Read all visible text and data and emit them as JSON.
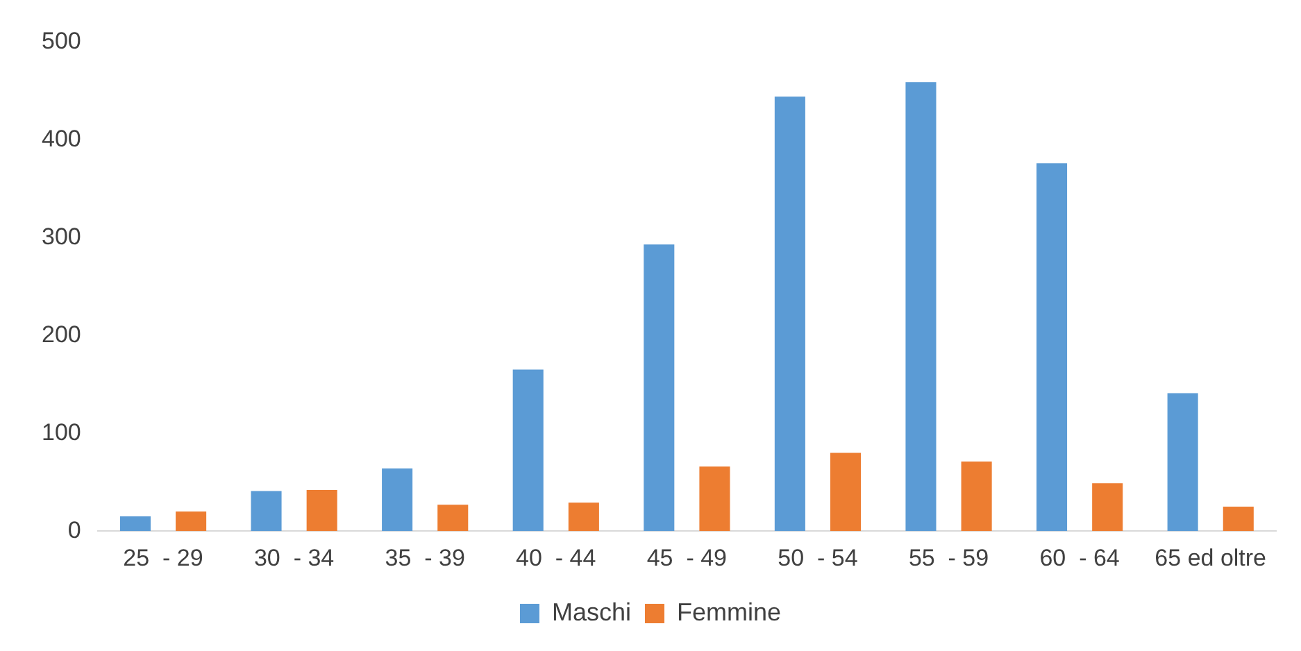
{
  "chart_data": {
    "type": "bar",
    "categories": [
      "25  - 29",
      "30  - 34",
      "35  - 39",
      "40  - 44",
      "45  - 49",
      "50  - 54",
      "55  - 59",
      "60  - 64",
      "65 ed oltre"
    ],
    "series": [
      {
        "name": "Maschi",
        "color": "#5b9bd5",
        "values": [
          15,
          41,
          64,
          165,
          293,
          444,
          459,
          376,
          141
        ]
      },
      {
        "name": "Femmine",
        "color": "#ed7d31",
        "values": [
          20,
          42,
          27,
          29,
          66,
          80,
          71,
          49,
          25
        ]
      }
    ],
    "ylim": [
      0,
      500
    ],
    "yticks": [
      0,
      100,
      200,
      300,
      400,
      500
    ],
    "grid": false,
    "legend": "bottom"
  }
}
